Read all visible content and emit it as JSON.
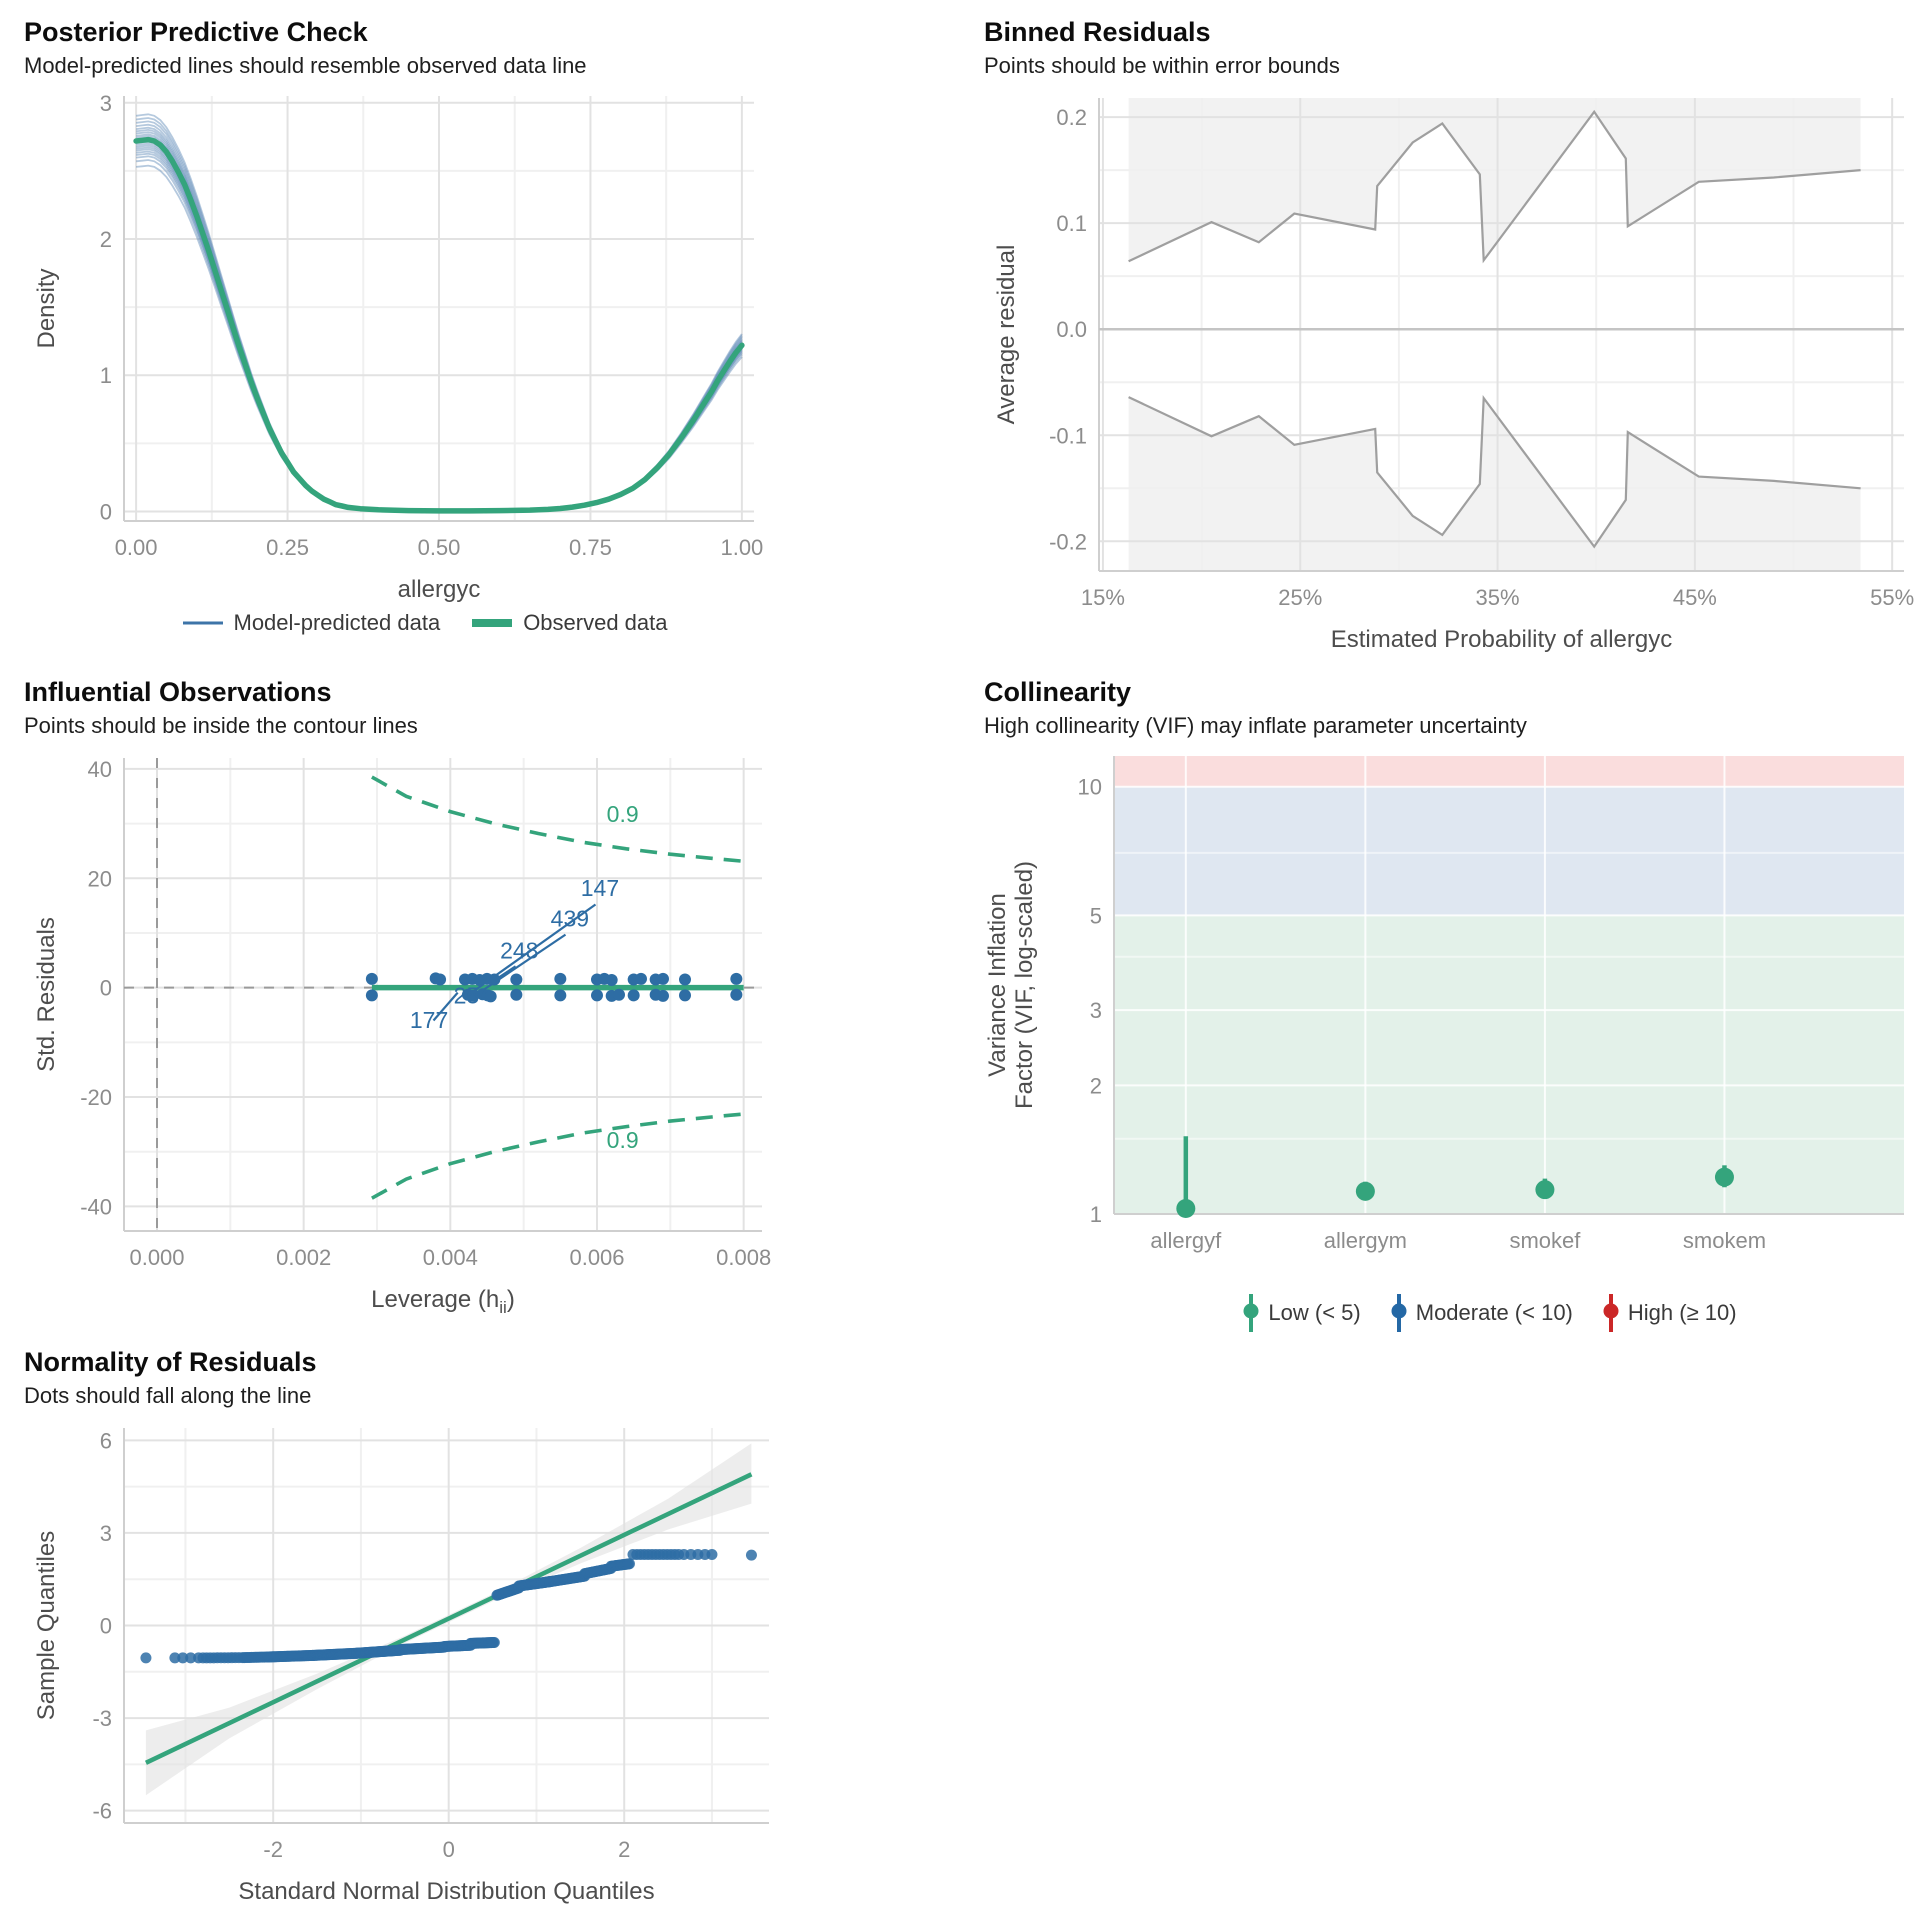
{
  "colors": {
    "green": "#34a47c",
    "blue": "#2e6da4",
    "ppc_blue": "#5b87b5",
    "ppc_blue_solid": "#3d74a8",
    "red": "#cb2727",
    "gray_line": "#9f9f9f",
    "grid": "#e2e2e2",
    "grid_minor": "#f0f0f0",
    "axis": "#cfcfcf",
    "tick_text": "#8c8c8c",
    "axis_title": "#4d4d4d",
    "shade": "#f2f2f2",
    "qq_band": "#e1e1e1",
    "band_low": "#e3f1e9",
    "band_mod": "#dfe7f1",
    "band_high": "#fadddd"
  },
  "chart_data": [
    {
      "type": "line",
      "title": "Posterior Predictive Check",
      "subtitle": "Model-predicted lines should resemble observed data line",
      "xlabel": "allergyc",
      "ylabel": "Density",
      "xlim": [
        -0.02,
        1.02
      ],
      "ylim": [
        -0.07,
        3.05
      ],
      "xticks": [
        {
          "v": 0,
          "l": "0.00"
        },
        {
          "v": 0.25,
          "l": "0.25"
        },
        {
          "v": 0.5,
          "l": "0.50"
        },
        {
          "v": 0.75,
          "l": "0.75"
        },
        {
          "v": 1,
          "l": "1.00"
        }
      ],
      "yticks": [
        {
          "v": 0,
          "l": "0"
        },
        {
          "v": 1,
          "l": "1"
        },
        {
          "v": 2,
          "l": "2"
        },
        {
          "v": 3,
          "l": "3"
        }
      ],
      "xminor": [
        0.125,
        0.375,
        0.625,
        0.875
      ],
      "yminor": [
        0.5,
        1.5,
        2.5
      ],
      "x": [
        0,
        0.01,
        0.02,
        0.03,
        0.04,
        0.05,
        0.06,
        0.07,
        0.08,
        0.09,
        0.1,
        0.11,
        0.12,
        0.13,
        0.14,
        0.15,
        0.16,
        0.17,
        0.18,
        0.19,
        0.2,
        0.21,
        0.22,
        0.23,
        0.24,
        0.25,
        0.26,
        0.27,
        0.28,
        0.29,
        0.3,
        0.31,
        0.32,
        0.33,
        0.34,
        0.35,
        0.37,
        0.4,
        0.45,
        0.5,
        0.55,
        0.6,
        0.65,
        0.68,
        0.7,
        0.72,
        0.74,
        0.76,
        0.78,
        0.8,
        0.82,
        0.84,
        0.86,
        0.88,
        0.9,
        0.92,
        0.94,
        0.95,
        0.96,
        0.97,
        0.98,
        0.99,
        1
      ],
      "observed": [
        2.72,
        2.725,
        2.73,
        2.72,
        2.69,
        2.64,
        2.57,
        2.49,
        2.4,
        2.29,
        2.17,
        2.04,
        1.91,
        1.77,
        1.63,
        1.49,
        1.35,
        1.21,
        1.08,
        0.95,
        0.83,
        0.72,
        0.61,
        0.52,
        0.43,
        0.36,
        0.29,
        0.24,
        0.19,
        0.15,
        0.12,
        0.09,
        0.07,
        0.05,
        0.04,
        0.03,
        0.02,
        0.012,
        0.006,
        0.004,
        0.004,
        0.006,
        0.01,
        0.015,
        0.022,
        0.032,
        0.046,
        0.065,
        0.09,
        0.125,
        0.17,
        0.235,
        0.32,
        0.42,
        0.54,
        0.67,
        0.81,
        0.88,
        0.96,
        1.03,
        1.1,
        1.165,
        1.22
      ],
      "sim_scale_factors": [
        0.93,
        0.945,
        0.955,
        0.962,
        0.968,
        0.974,
        0.979,
        0.984,
        0.989,
        0.994,
        1.004,
        1.009,
        1.014,
        1.02,
        1.026,
        1.032,
        1.04,
        1.049,
        1.058,
        1.068
      ],
      "legend": [
        {
          "label": "Model-predicted data",
          "color": "#3d74a8",
          "width": 3
        },
        {
          "label": "Observed data",
          "color": "#34a47c",
          "width": 8
        }
      ]
    },
    {
      "type": "bounds",
      "title": "Binned Residuals",
      "subtitle": "Points should be within error bounds",
      "xlabel": "Estimated Probability of allergyc",
      "ylabel": "Average residual",
      "xlim": [
        14.8,
        55.6
      ],
      "ylim": [
        -0.228,
        0.218
      ],
      "xticks": [
        {
          "v": 15,
          "l": "15%"
        },
        {
          "v": 25,
          "l": "25%"
        },
        {
          "v": 35,
          "l": "35%"
        },
        {
          "v": 45,
          "l": "45%"
        },
        {
          "v": 55,
          "l": "55%"
        }
      ],
      "yticks": [
        {
          "v": -0.2,
          "l": "-0.2"
        },
        {
          "v": -0.1,
          "l": "-0.1"
        },
        {
          "v": 0,
          "l": "0.0"
        },
        {
          "v": 0.1,
          "l": "0.1"
        },
        {
          "v": 0.2,
          "l": "0.2"
        }
      ],
      "xminor": [
        20,
        30,
        40,
        50
      ],
      "yminor": [
        -0.15,
        -0.05,
        0.05,
        0.15
      ],
      "upper": [
        [
          16.3,
          0.064
        ],
        [
          20.5,
          0.101
        ],
        [
          22.9,
          0.082
        ],
        [
          24.7,
          0.109
        ],
        [
          28.8,
          0.094
        ],
        [
          28.9,
          0.135
        ],
        [
          30.7,
          0.176
        ],
        [
          32.2,
          0.194
        ],
        [
          34.1,
          0.146
        ],
        [
          34.3,
          0.065
        ],
        [
          39.9,
          0.205
        ],
        [
          41.5,
          0.161
        ],
        [
          41.6,
          0.097
        ],
        [
          45.2,
          0.139
        ],
        [
          49,
          0.143
        ],
        [
          53.4,
          0.15
        ]
      ],
      "lower": [
        [
          16.3,
          -0.064
        ],
        [
          20.5,
          -0.101
        ],
        [
          22.9,
          -0.082
        ],
        [
          24.7,
          -0.109
        ],
        [
          28.8,
          -0.094
        ],
        [
          28.9,
          -0.135
        ],
        [
          30.7,
          -0.176
        ],
        [
          32.2,
          -0.194
        ],
        [
          34.1,
          -0.146
        ],
        [
          34.3,
          -0.065
        ],
        [
          39.9,
          -0.205
        ],
        [
          41.5,
          -0.161
        ],
        [
          41.6,
          -0.097
        ],
        [
          45.2,
          -0.139
        ],
        [
          49,
          -0.143
        ],
        [
          53.4,
          -0.15
        ]
      ]
    },
    {
      "type": "scatter",
      "title": "Influential Observations",
      "subtitle": "Points should be inside the contour lines",
      "xlabel_parts": {
        "pre": "Leverage (h",
        "sub": "ii",
        "post": ")"
      },
      "ylabel": "Std. Residuals",
      "xlim": [
        -0.00045,
        0.00825
      ],
      "ylim": [
        -44.5,
        42
      ],
      "xticks": [
        {
          "v": 0,
          "l": "0.000"
        },
        {
          "v": 0.002,
          "l": "0.002"
        },
        {
          "v": 0.004,
          "l": "0.004"
        },
        {
          "v": 0.006,
          "l": "0.006"
        },
        {
          "v": 0.008,
          "l": "0.008"
        }
      ],
      "yticks": [
        {
          "v": -40,
          "l": "-40"
        },
        {
          "v": -20,
          "l": "-20"
        },
        {
          "v": 0,
          "l": "0"
        },
        {
          "v": 20,
          "l": "20"
        },
        {
          "v": 40,
          "l": "40"
        }
      ],
      "xminor": [
        0.001,
        0.003,
        0.005,
        0.007
      ],
      "yminor": [
        -30,
        -10,
        10,
        30
      ],
      "hline_green": {
        "y": 0,
        "x0": 0.00293,
        "x1": 0.008
      },
      "contour_upper": [
        [
          0.00293,
          38.5
        ],
        [
          0.0034,
          35
        ],
        [
          0.004,
          32.2
        ],
        [
          0.0046,
          30
        ],
        [
          0.0052,
          28.2
        ],
        [
          0.0058,
          26.6
        ],
        [
          0.0064,
          25.4
        ],
        [
          0.007,
          24.4
        ],
        [
          0.0076,
          23.6
        ],
        [
          0.008,
          23.1
        ]
      ],
      "contour_label": "0.9",
      "contour_label_top": [
        0.00635,
        30.3
      ],
      "contour_label_bottom": [
        0.00635,
        -29.3
      ],
      "points": [
        [
          0.00293,
          1.6
        ],
        [
          0.00293,
          -1.4
        ],
        [
          0.0038,
          1.7
        ],
        [
          0.00386,
          1.5
        ],
        [
          0.0042,
          1.5
        ],
        [
          0.00424,
          -1.3
        ],
        [
          0.0043,
          1.6
        ],
        [
          0.00431,
          -1.5
        ],
        [
          0.0044,
          1.4
        ],
        [
          0.00444,
          -1.2
        ],
        [
          0.0045,
          1.6
        ],
        [
          0.00451,
          -1.4
        ],
        [
          0.00455,
          -1.6
        ],
        [
          0.0046,
          1.5
        ],
        [
          0.0049,
          1.5
        ],
        [
          0.0049,
          -1.3
        ],
        [
          0.0055,
          1.6
        ],
        [
          0.0055,
          -1.4
        ],
        [
          0.006,
          1.5
        ],
        [
          0.006,
          -1.4
        ],
        [
          0.0061,
          1.6
        ],
        [
          0.0062,
          1.4
        ],
        [
          0.0062,
          -1.5
        ],
        [
          0.0063,
          -1.3
        ],
        [
          0.0065,
          1.5
        ],
        [
          0.0065,
          -1.4
        ],
        [
          0.0066,
          1.6
        ],
        [
          0.0068,
          1.5
        ],
        [
          0.0068,
          -1.3
        ],
        [
          0.0069,
          1.6
        ],
        [
          0.0069,
          -1.5
        ],
        [
          0.0072,
          1.5
        ],
        [
          0.0072,
          -1.4
        ],
        [
          0.0079,
          1.6
        ],
        [
          0.0079,
          -1.3
        ]
      ],
      "outlier_labels": [
        {
          "t": "147",
          "x": 0.00604,
          "y": 16.8,
          "line": [
            [
              0.00598,
              15.2
            ],
            [
              0.00428,
              -1.0
            ]
          ]
        },
        {
          "t": "439",
          "x": 0.00563,
          "y": 11.2,
          "line": [
            [
              0.00557,
              9.7
            ],
            [
              0.00443,
              -0.6
            ]
          ]
        },
        {
          "t": "248",
          "x": 0.00494,
          "y": 5.3,
          "line": [
            [
              0.00489,
              3.9
            ],
            [
              0.00453,
              0.7
            ]
          ]
        },
        {
          "t": "25",
          "x": 0.00422,
          "y": -2.9,
          "line": [
            [
              0.00427,
              -1.9
            ],
            [
              0.00437,
              -0.5
            ]
          ]
        },
        {
          "t": "177",
          "x": 0.00371,
          "y": -7.4,
          "line": [
            [
              0.00377,
              -6.0
            ],
            [
              0.0041,
              -0.9
            ]
          ]
        }
      ]
    },
    {
      "type": "pointrange",
      "title": "Collinearity",
      "subtitle": "High collinearity (VIF) may inflate parameter uncertainty",
      "ylabel": [
        "Variance Inflation",
        "Factor (VIF, log-scaled)"
      ],
      "categories": [
        "allergyf",
        "allergym",
        "smokef",
        "smokem"
      ],
      "vif": [
        1.03,
        1.13,
        1.14,
        1.22
      ],
      "ci_low": [
        1.005,
        1.095,
        1.1,
        1.155
      ],
      "ci_high": [
        1.52,
        1.19,
        1.21,
        1.3
      ],
      "ylim": [
        1,
        11.8
      ],
      "yticks": [
        {
          "v": 1,
          "l": "1"
        },
        {
          "v": 2,
          "l": "2"
        },
        {
          "v": 3,
          "l": "3"
        },
        {
          "v": 5,
          "l": "5"
        },
        {
          "v": 10,
          "l": "10"
        }
      ],
      "yminor": [
        1.5,
        4,
        7
      ],
      "bands": [
        {
          "from": 1,
          "to": 5,
          "color": "#e3f1e9"
        },
        {
          "from": 5,
          "to": 10,
          "color": "#dfe7f1"
        },
        {
          "from": 10,
          "to": 11.8,
          "color": "#fadddd"
        }
      ],
      "legend": [
        {
          "label": "Low (< 5)",
          "color": "#34a47c"
        },
        {
          "label": "Moderate (< 10)",
          "color": "#2468a5"
        },
        {
          "label": "High (≥ 10)",
          "color": "#cb2727"
        }
      ]
    },
    {
      "type": "qq",
      "title": "Normality of Residuals",
      "subtitle": "Dots should fall along the line",
      "xlabel": "Standard Normal Distribution Quantiles",
      "ylabel": "Sample Quantiles",
      "xlim": [
        -3.7,
        3.65
      ],
      "ylim": [
        -6.4,
        6.4
      ],
      "xticks": [
        {
          "v": -2,
          "l": "-2"
        },
        {
          "v": 0,
          "l": "0"
        },
        {
          "v": 2,
          "l": "2"
        }
      ],
      "yticks": [
        {
          "v": -6,
          "l": "-6"
        },
        {
          "v": -3,
          "l": "-3"
        },
        {
          "v": 0,
          "l": "0"
        },
        {
          "v": 3,
          "l": "3"
        },
        {
          "v": 6,
          "l": "6"
        }
      ],
      "xminor": [
        -3,
        -1,
        1,
        3
      ],
      "yminor": [
        -4.5,
        -1.5,
        1.5,
        4.5
      ],
      "line": {
        "x0": -3.45,
        "y0": -4.45,
        "x1": 3.45,
        "y1": 4.9
      },
      "band_upper": [
        [
          -3.45,
          -3.4
        ],
        [
          -2.5,
          -2.66
        ],
        [
          -1.5,
          -1.56
        ],
        [
          -0.5,
          -0.33
        ],
        [
          0.5,
          1.02
        ],
        [
          1.5,
          2.51
        ],
        [
          2.5,
          4.11
        ],
        [
          3.45,
          5.9
        ]
      ],
      "band_lower": [
        [
          -3.45,
          -5.5
        ],
        [
          -2.5,
          -3.66
        ],
        [
          -1.5,
          -2.06
        ],
        [
          -0.5,
          -0.57
        ],
        [
          0.5,
          0.78
        ],
        [
          1.5,
          2.01
        ],
        [
          2.5,
          3.11
        ],
        [
          3.45,
          3.95
        ]
      ],
      "point_runs": [
        {
          "x0": -3.45,
          "x1": -3.45,
          "y0": -1.05,
          "y1": -1.05,
          "n": 1
        },
        {
          "x0": -3.12,
          "x1": -2.85,
          "y0": -1.05,
          "y1": -1.05,
          "n": 4
        },
        {
          "x0": -2.8,
          "x1": -2.35,
          "y0": -1.05,
          "y1": -1.04,
          "n": 12
        },
        {
          "x0": -2.33,
          "x1": -2.06,
          "y0": -1.04,
          "y1": -1.02,
          "n": 14
        },
        {
          "x0": -2.06,
          "x1": -1.55,
          "y0": -1.02,
          "y1": -0.97,
          "n": 45
        },
        {
          "x0": -1.55,
          "x1": -1.05,
          "y0": -0.97,
          "y1": -0.9,
          "n": 50
        },
        {
          "x0": -1.05,
          "x1": -0.55,
          "y0": -0.9,
          "y1": -0.8,
          "n": 55
        },
        {
          "x0": -0.55,
          "x1": -0.05,
          "y0": -0.78,
          "y1": -0.7,
          "n": 55
        },
        {
          "x0": -0.05,
          "x1": 0.25,
          "y0": -0.68,
          "y1": -0.64,
          "n": 30
        },
        {
          "x0": 0.25,
          "x1": 0.52,
          "y0": -0.58,
          "y1": -0.55,
          "n": 25
        },
        {
          "x0": 0.55,
          "x1": 0.8,
          "y0": 0.98,
          "y1": 1.22,
          "n": 25
        },
        {
          "x0": 0.8,
          "x1": 1.15,
          "y0": 1.28,
          "y1": 1.42,
          "n": 35
        },
        {
          "x0": 1.15,
          "x1": 1.55,
          "y0": 1.42,
          "y1": 1.6,
          "n": 35
        },
        {
          "x0": 1.55,
          "x1": 1.85,
          "y0": 1.68,
          "y1": 1.85,
          "n": 25
        },
        {
          "x0": 1.85,
          "x1": 2.06,
          "y0": 1.92,
          "y1": 2.0,
          "n": 18
        },
        {
          "x0": 2.1,
          "x1": 2.62,
          "y0": 2.3,
          "y1": 2.3,
          "n": 13
        },
        {
          "x0": 2.68,
          "x1": 3.0,
          "y0": 2.3,
          "y1": 2.3,
          "n": 5
        },
        {
          "x0": 3.45,
          "x1": 3.45,
          "y0": 2.28,
          "y1": 2.28,
          "n": 1
        }
      ]
    }
  ]
}
